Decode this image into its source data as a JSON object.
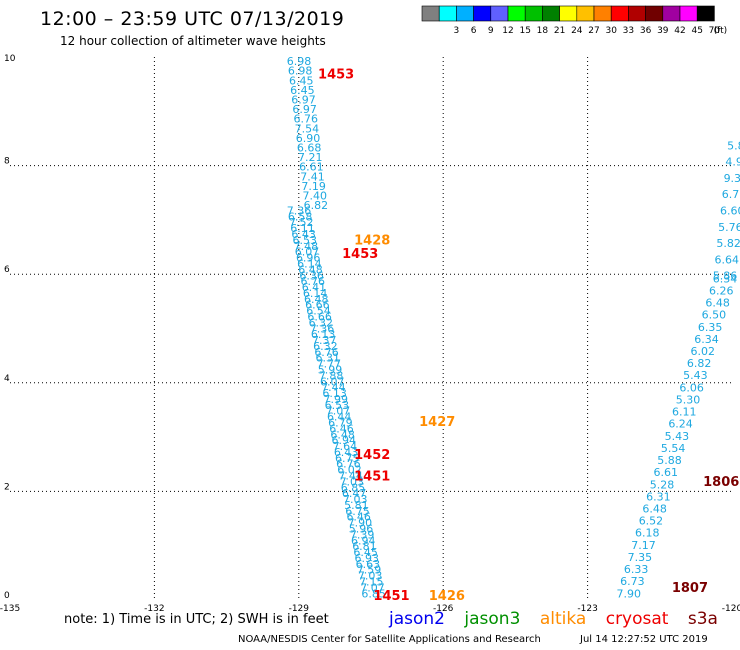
{
  "title": "12:00 – 23:59 UTC 07/13/2019",
  "subtitle": "12 hour collection of altimeter wave heights",
  "colorbar": {
    "unit": "(ft)",
    "bins": [
      {
        "color": "#808080",
        "label": ""
      },
      {
        "color": "#00ffff",
        "label": "3"
      },
      {
        "color": "#00b0ff",
        "label": "6"
      },
      {
        "color": "#0000ff",
        "label": "9"
      },
      {
        "color": "#6060ff",
        "label": "12"
      },
      {
        "color": "#00ff00",
        "label": "15"
      },
      {
        "color": "#00c000",
        "label": "18"
      },
      {
        "color": "#008000",
        "label": "21"
      },
      {
        "color": "#ffff00",
        "label": "24"
      },
      {
        "color": "#ffc000",
        "label": "27"
      },
      {
        "color": "#ff8000",
        "label": "30"
      },
      {
        "color": "#ff0000",
        "label": "33"
      },
      {
        "color": "#b00000",
        "label": "36"
      },
      {
        "color": "#700000",
        "label": "39"
      },
      {
        "color": "#a000a0",
        "label": "42"
      },
      {
        "color": "#ff00ff",
        "label": "45"
      },
      {
        "color": "#000000",
        "label": "70"
      }
    ]
  },
  "note": "note:  1) Time is in UTC;  2) SWH is in feet",
  "satellites": [
    {
      "name": "jason2",
      "color": "#0000ee"
    },
    {
      "name": "jason3",
      "color": "#009000"
    },
    {
      "name": "altika",
      "color": "#ff8c00"
    },
    {
      "name": "cryosat",
      "color": "#ee0000"
    },
    {
      "name": "s3a",
      "color": "#7a0000"
    }
  ],
  "credit": "NOAA/NESDIS Center for Satellite Applications and Research",
  "timestamp": "Jul 14 12:27:52 UTC 2019",
  "chart_data": {
    "type": "scatter",
    "xlim": [
      -135,
      -120
    ],
    "ylim": [
      0,
      10
    ],
    "x_ticks": [
      "-135",
      "-132",
      "-129",
      "-126",
      "-123",
      "-120"
    ],
    "y_ticks": [
      "0",
      "2",
      "4",
      "6",
      "8",
      "10"
    ],
    "grid": true,
    "swh_color": "#1ea8e0",
    "swh_tracks": [
      {
        "x0": -129.25,
        "y0": 9.85,
        "x1": -128.9,
        "y1": 7.2,
        "values": [
          "6.98",
          "6.98",
          "6.45",
          "6.45",
          "6.97",
          "6.97",
          "6.76",
          "7.54",
          "6.90",
          "6.68",
          "7.21",
          "6.61",
          "7.41",
          "7.19",
          "7.40",
          "6.82"
        ]
      },
      {
        "x0": -129.25,
        "y0": 7.1,
        "x1": -127.7,
        "y1": 0.05,
        "values": [
          "7.36",
          "6.58",
          "7.52",
          "6.11",
          "6.43",
          "6.53",
          "7.48",
          "6.07",
          "6.96",
          "6.14",
          "6.48",
          "6.36",
          "6.76",
          "6.41",
          "6.14",
          "6.48",
          "6.66",
          "6.54",
          "6.66",
          "6.32",
          "7.36",
          "6.13",
          "7.37",
          "6.32",
          "6.76",
          "6.31",
          "7.77",
          "5.99",
          "7.88",
          "6.07",
          "7.44",
          "6.13",
          "7.99",
          "6.53",
          "7.07",
          "6.44",
          "6.79",
          "6.46",
          "6.48",
          "6.94",
          "7.64",
          "6.43",
          "6.75",
          "6.76",
          "6.02",
          "7.44",
          "7.03",
          "6.85",
          "6.47",
          "7.03",
          "5.81",
          "6.75",
          "6.46",
          "7.90",
          "5.96",
          "7.39",
          "6.94",
          "6.81",
          "6.45",
          "6.93",
          "6.63",
          "7.59",
          "7.03",
          "7.15",
          "7.07",
          "6.85"
        ]
      },
      {
        "x0": -120.1,
        "y0": 8.3,
        "x1": -120.4,
        "y1": 5.9,
        "values": [
          "5.88",
          "4.96",
          "9.32",
          "6.78",
          "6.60",
          "5.76",
          "5.82",
          "6.64",
          "5.86"
        ]
      },
      {
        "x0": -120.4,
        "y0": 5.85,
        "x1": -122.4,
        "y1": 0.05,
        "values": [
          "6.34",
          "6.26",
          "6.48",
          "6.50",
          "6.35",
          "6.34",
          "6.02",
          "6.82",
          "5.43",
          "6.06",
          "5.30",
          "6.11",
          "6.24",
          "5.43",
          "5.54",
          "5.88",
          "6.61",
          "5.28",
          "6.31",
          "6.48",
          "6.52",
          "6.18",
          "7.17",
          "7.35",
          "6.33",
          "6.73",
          "7.90"
        ]
      }
    ],
    "pass_times": [
      {
        "x": -128.6,
        "y": 9.6,
        "label": "1453",
        "color": "#ee0000"
      },
      {
        "x": -127.85,
        "y": 6.55,
        "label": "1428",
        "color": "#ff8c00"
      },
      {
        "x": -128.1,
        "y": 6.3,
        "label": "1453",
        "color": "#ee0000"
      },
      {
        "x": -126.5,
        "y": 3.2,
        "label": "1427",
        "color": "#ff8c00"
      },
      {
        "x": -127.85,
        "y": 2.6,
        "label": "1452",
        "color": "#ee0000"
      },
      {
        "x": -127.85,
        "y": 2.2,
        "label": "1451",
        "color": "#ee0000"
      },
      {
        "x": -127.45,
        "y": 0.0,
        "label": "1451",
        "color": "#ee0000"
      },
      {
        "x": -126.3,
        "y": 0.0,
        "label": "1426",
        "color": "#ff8c00"
      },
      {
        "x": -120.6,
        "y": 2.1,
        "label": "1806",
        "color": "#7a0000"
      },
      {
        "x": -121.25,
        "y": 0.15,
        "label": "1807",
        "color": "#7a0000"
      }
    ]
  }
}
